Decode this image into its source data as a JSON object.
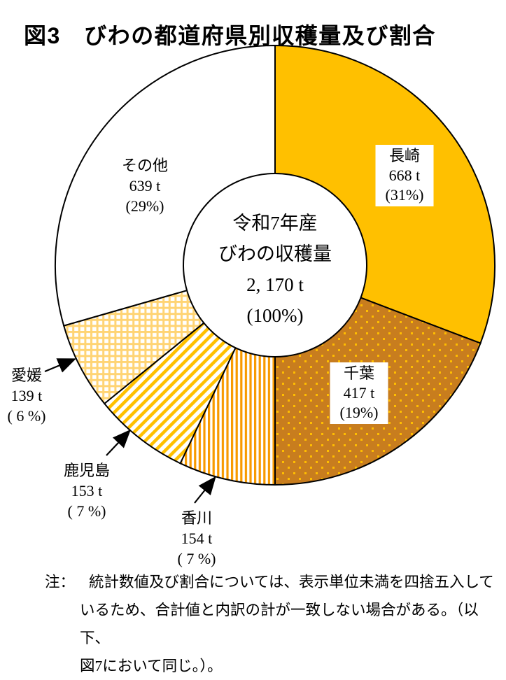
{
  "title": "図3　びわの都道府県別収穫量及び割合",
  "chart_data": {
    "type": "pie",
    "subtype": "donut",
    "title": "図3　びわの都道府県別収穫量及び割合",
    "unit": "t",
    "total_value": 2170,
    "center_label": [
      "令和7年産",
      "びわの収穫量",
      "2, 170 t",
      "(100%)"
    ],
    "start_angle_deg": 0,
    "direction": "clockwise",
    "legend_position": "labels-on-chart",
    "segments": [
      {
        "id": "nagasaki",
        "name": "長崎",
        "tons": "668 t",
        "value": 668,
        "pct_label": "(31%)",
        "pct": 31,
        "pattern": "solid",
        "fill": "#FFC000"
      },
      {
        "id": "chiba",
        "name": "千葉",
        "tons": "417 t",
        "value": 417,
        "pct_label": "(19%)",
        "pct": 19,
        "pattern": "dots",
        "fill": "pat-dots"
      },
      {
        "id": "kagawa",
        "name": "香川",
        "tons": "154 t",
        "value": 154,
        "pct_label": "( 7 %)",
        "pct": 7,
        "pattern": "vertical-stripes",
        "fill": "pat-vstripes"
      },
      {
        "id": "kagoshima",
        "name": "鹿児島",
        "tons": "153 t",
        "value": 153,
        "pct_label": "( 7 %)",
        "pct": 7,
        "pattern": "diagonal-stripes",
        "fill": "pat-diag"
      },
      {
        "id": "ehime",
        "name": "愛媛",
        "tons": "139 t",
        "value": 139,
        "pct_label": "( 6 %)",
        "pct": 6,
        "pattern": "grid",
        "fill": "pat-grid"
      },
      {
        "id": "sonota",
        "name": "その他",
        "tons": "639 t",
        "value": 639,
        "pct_label": "(29%)",
        "pct": 29,
        "pattern": "plain-white",
        "fill": "#FFFFFF"
      }
    ],
    "colors": {
      "nagasaki_yellow": "#FFC000",
      "chiba_brown": "#C87D1E",
      "chiba_dot_yellow": "#FFBE00",
      "kagawa_stripe_orange": "#F89A00",
      "kagoshima_stripe_yellow": "#FFC000",
      "ehime_grid_yellow": "#FFD474",
      "outline_black": "#000000"
    }
  },
  "note": {
    "label": "注：",
    "lines": [
      "統計数値及び割合については、表示単位未満を四捨五入して",
      "いるため、合計値と内訳の計が一致しない場合がある。（以下、",
      "図7において同じ。）。"
    ]
  }
}
